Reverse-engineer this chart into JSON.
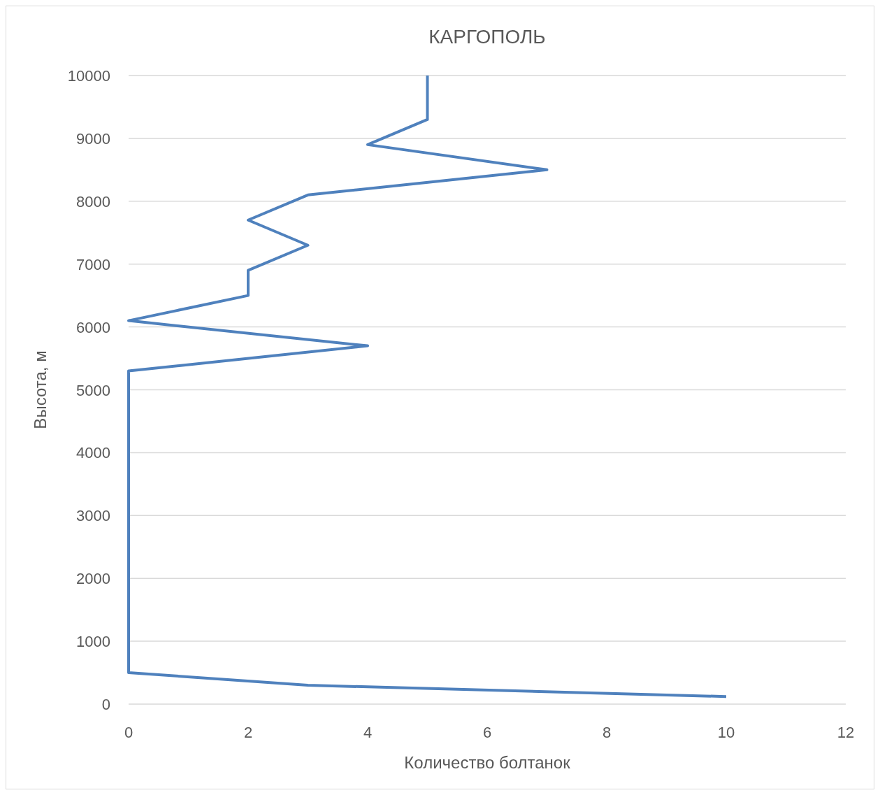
{
  "chart_data": {
    "type": "line",
    "title": "КАРГОПОЛЬ",
    "xlabel": "Количество болтанок",
    "ylabel": "Высота, м",
    "series": [
      {
        "color": "#4f81bd",
        "x": [
          10,
          3,
          0,
          0,
          0,
          0,
          0,
          0,
          0,
          0,
          0,
          0,
          0,
          0,
          0,
          4,
          0,
          2,
          2,
          3,
          2,
          3,
          7,
          4,
          5,
          5,
          5
        ],
        "values": [
          120,
          300,
          500,
          900,
          1300,
          1700,
          2100,
          2500,
          2900,
          3300,
          3700,
          4100,
          4500,
          4900,
          5300,
          5700,
          6100,
          6500,
          6900,
          7300,
          7700,
          8100,
          8500,
          8900,
          9300,
          9700,
          10000
        ]
      }
    ],
    "xlim": [
      0,
      12
    ],
    "xticks": [
      0,
      2,
      4,
      6,
      8,
      10,
      12
    ],
    "ylim": [
      0,
      10000
    ],
    "yticks": [
      0,
      1000,
      2000,
      3000,
      4000,
      5000,
      6000,
      7000,
      8000,
      9000,
      10000
    ],
    "grid": "y",
    "marker": "none",
    "line_style": "solid"
  }
}
